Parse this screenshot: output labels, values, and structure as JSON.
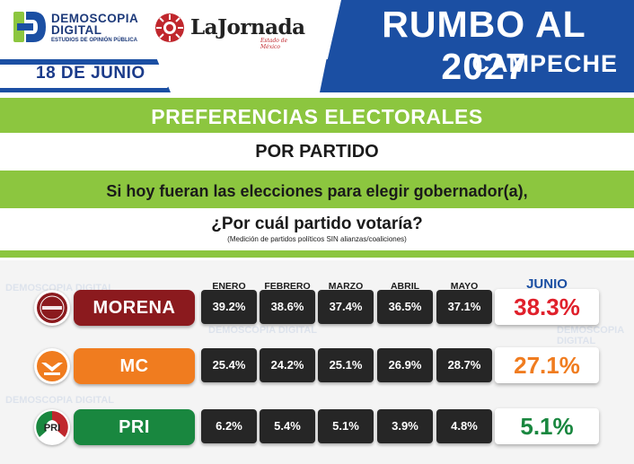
{
  "header": {
    "pollster_line1": "DEMOSCOPIA",
    "pollster_line2": "DIGITAL",
    "pollster_sub": "ESTUDIOS DE OPINIÓN PÚBLICA",
    "newspaper": "LaJornada",
    "newspaper_sub": "Estado de México",
    "date": "18 DE JUNIO",
    "title": "RUMBO AL 2027",
    "subtitle": "CAMPECHE"
  },
  "question": {
    "heading": "PREFERENCIAS ELECTORALES",
    "subheading": "POR PARTIDO",
    "line1": "Si hoy fueran las elecciones para elegir gobernador(a),",
    "line2": "¿Por cuál partido votaría?",
    "note": "(Medición de partidos políticos SIN alianzas/coaliciones)"
  },
  "watermark": "DEMOSCOPIA DIGITAL",
  "colors": {
    "blue": "#1b4fa3",
    "green_band": "#8cc63f",
    "cell": "#262626",
    "morena": "#8b1a1e",
    "mc": "#f07c1f",
    "pri": "#19873f"
  },
  "chart_data": {
    "type": "table",
    "title": "PREFERENCIAS ELECTORALES",
    "categories": [
      "ENERO",
      "FEBRERO",
      "MARZO",
      "ABRIL",
      "MAYO",
      "JUNIO"
    ],
    "series": [
      {
        "name": "MORENA",
        "values": [
          39.2,
          38.6,
          37.4,
          36.5,
          37.1,
          38.3
        ],
        "labels": [
          "39.2%",
          "38.6%",
          "37.4%",
          "36.5%",
          "37.1%",
          "38.3%"
        ],
        "color": "#8b1a1e",
        "logo_icon": "morena-logo-icon"
      },
      {
        "name": "MC",
        "values": [
          25.4,
          24.2,
          25.1,
          26.9,
          28.7,
          27.1
        ],
        "labels": [
          "25.4%",
          "24.2%",
          "25.1%",
          "26.9%",
          "28.7%",
          "27.1%"
        ],
        "color": "#f07c1f",
        "logo_icon": "eagle-logo-icon"
      },
      {
        "name": "PRI",
        "values": [
          6.2,
          5.4,
          5.1,
          3.9,
          4.8,
          5.1
        ],
        "labels": [
          "6.2%",
          "5.4%",
          "5.1%",
          "3.9%",
          "4.8%",
          "5.1%"
        ],
        "color": "#19873f",
        "logo_icon": "pri-logo-icon"
      }
    ]
  }
}
